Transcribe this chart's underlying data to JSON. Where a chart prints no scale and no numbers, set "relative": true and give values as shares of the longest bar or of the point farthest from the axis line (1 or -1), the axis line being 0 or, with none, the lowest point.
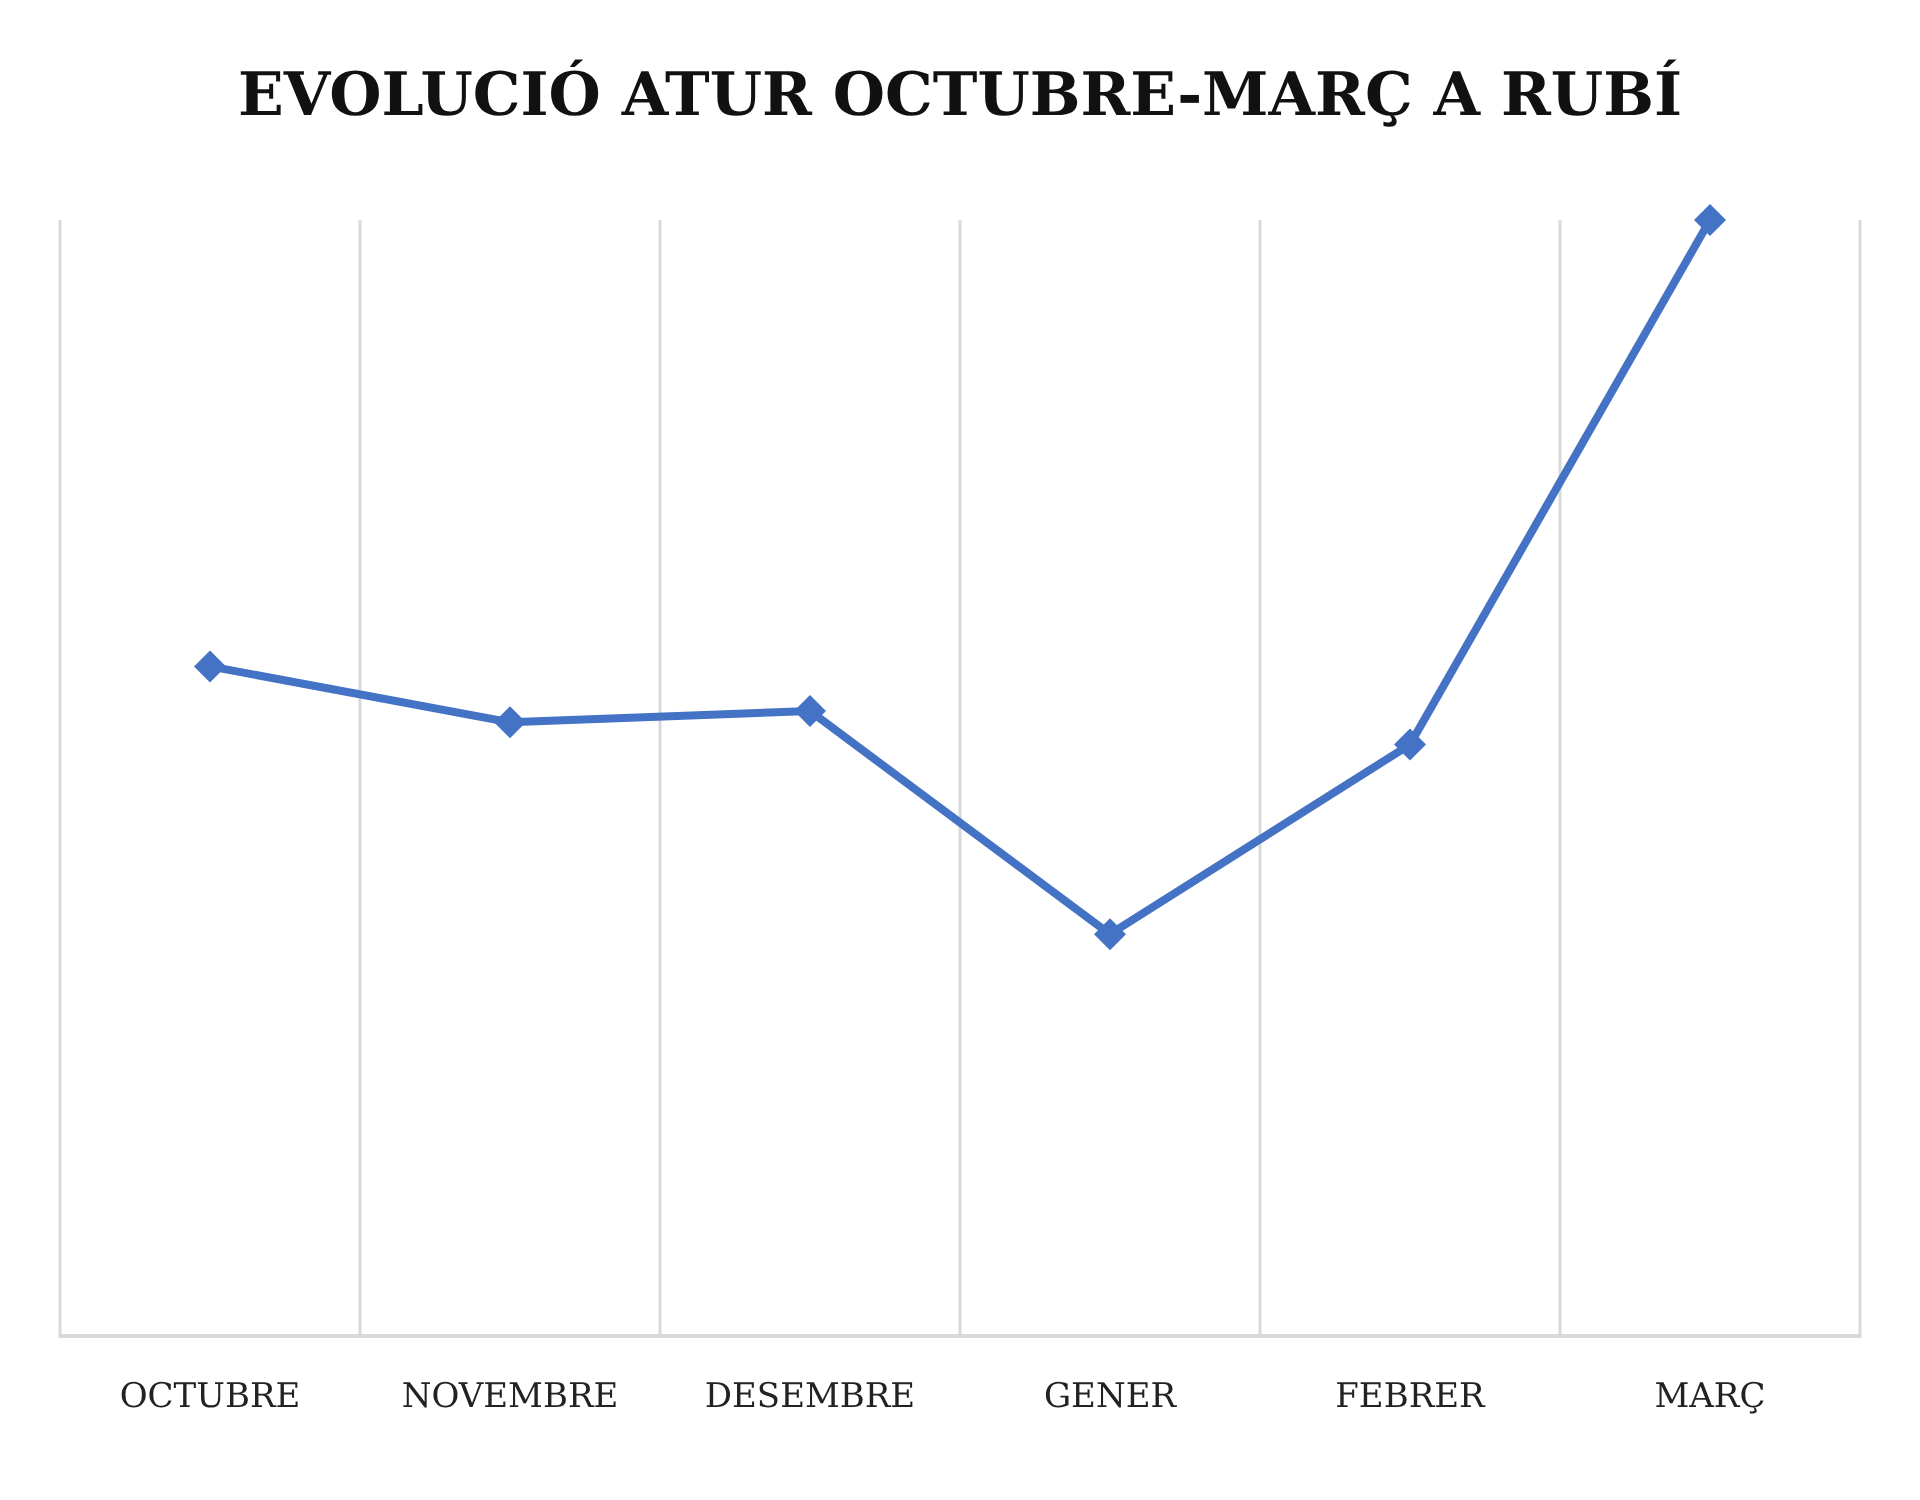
{
  "chart_data": {
    "type": "line",
    "title": "EVOLUCIÓ ATUR OCTUBRE-MARÇ A RUBÍ",
    "categories": [
      "OCTUBRE",
      "NOVEMBRE",
      "DESEMBRE",
      "GENER",
      "FEBRER",
      "MARÇ"
    ],
    "relative": true,
    "series": [
      {
        "color": "#4472c4",
        "values": [
          0.6,
          0.55,
          0.56,
          0.36,
          0.53,
          1
        ]
      }
    ],
    "marker": "diamond",
    "line_style": "solid",
    "grid": "x"
  }
}
